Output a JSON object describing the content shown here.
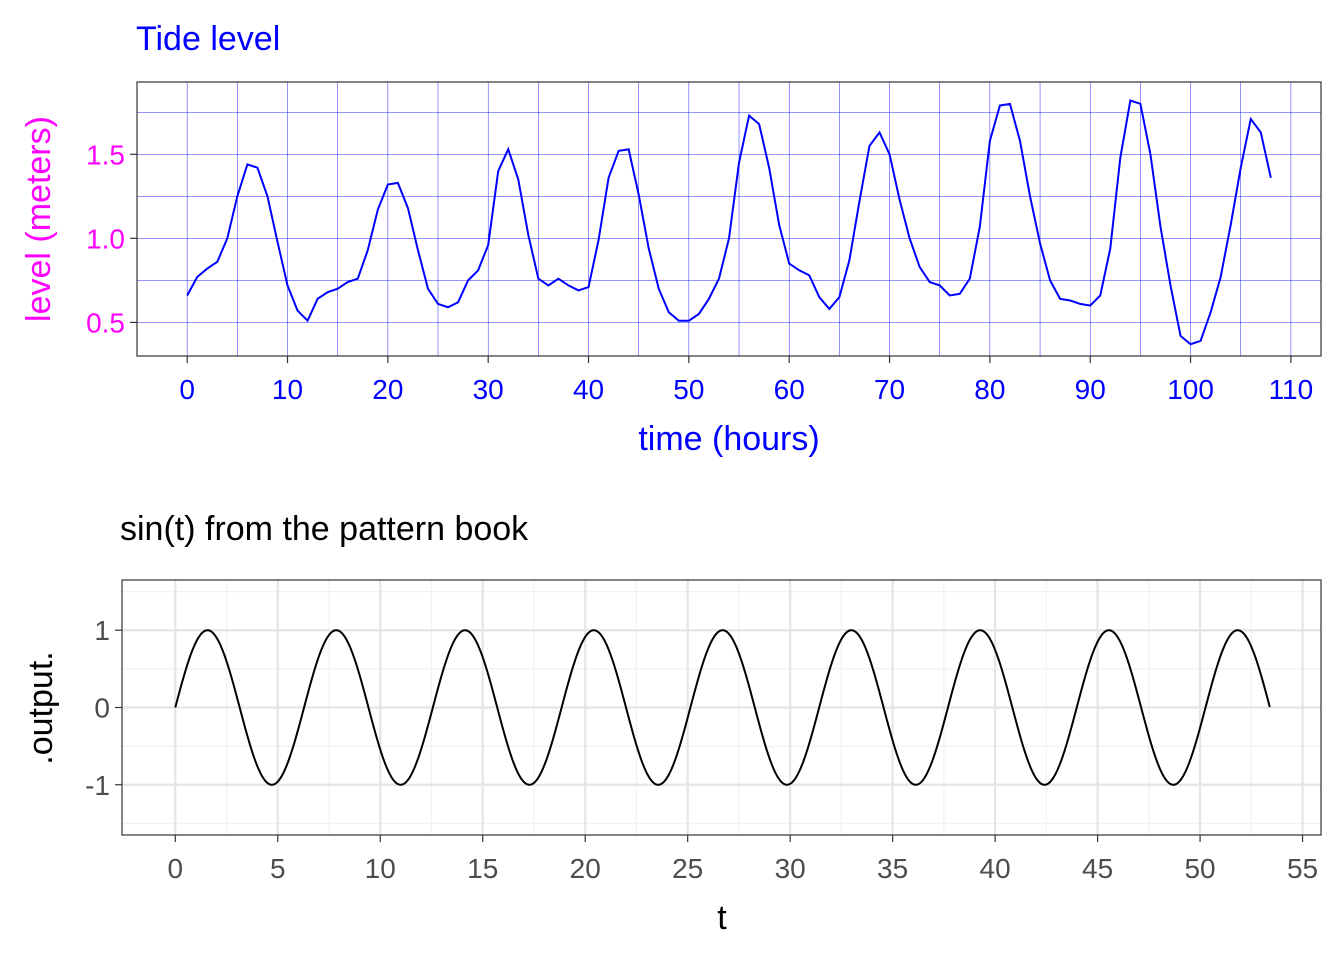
{
  "colors": {
    "tide_accent": "#0000ff",
    "tide_ylabel": "#ff00ff",
    "tide_grid": "#0000ff",
    "sine_line": "#000000",
    "sine_grid_major": "#e5e5e5",
    "sine_grid_minor": "#f1f1f1",
    "tick_text": "#4d4d4d"
  },
  "chart_data": [
    {
      "type": "line",
      "title": "Tide level",
      "xlabel": "time (hours)",
      "ylabel": "level (meters)",
      "xlim": [
        -5,
        113
      ],
      "ylim": [
        0.3,
        1.93
      ],
      "x_ticks": [
        0,
        10,
        20,
        30,
        40,
        50,
        60,
        70,
        80,
        90,
        100,
        110
      ],
      "x_tick_labels": [
        "0",
        "10",
        "20",
        "30",
        "40",
        "50",
        "60",
        "70",
        "80",
        "90",
        "100",
        "110"
      ],
      "y_ticks": [
        0.5,
        1.0,
        1.5
      ],
      "y_tick_labels": [
        "0.5",
        "1.0",
        "1.5"
      ],
      "grid": true,
      "series": [
        {
          "x": [
            0,
            1,
            2,
            3,
            4,
            5,
            6,
            7,
            8,
            9,
            10,
            11,
            12,
            13,
            14,
            15,
            16,
            17,
            18,
            19,
            20,
            21,
            22,
            23,
            24,
            25,
            26,
            27,
            28,
            29,
            30,
            31,
            32,
            33,
            34,
            35,
            36,
            37,
            38,
            39,
            40,
            41,
            42,
            43,
            44,
            45,
            46,
            47,
            48,
            49,
            50,
            51,
            52,
            53,
            54,
            55,
            56,
            57,
            58,
            59,
            60,
            61,
            62,
            63,
            64,
            65,
            66,
            67,
            68,
            69,
            70,
            71,
            72,
            73,
            74,
            75,
            76,
            77,
            78,
            79,
            80,
            81,
            82,
            83,
            84,
            85,
            86,
            87,
            88,
            89,
            90,
            91,
            92,
            93,
            94,
            95,
            96,
            97,
            98,
            99,
            100,
            101,
            102,
            103,
            104,
            105,
            106,
            107,
            108
          ],
          "y": [
            0.66,
            0.77,
            0.82,
            0.86,
            1.0,
            1.25,
            1.44,
            1.42,
            1.25,
            0.98,
            0.72,
            0.57,
            0.51,
            0.64,
            0.68,
            0.7,
            0.74,
            0.76,
            0.93,
            1.17,
            1.32,
            1.33,
            1.18,
            0.93,
            0.7,
            0.61,
            0.59,
            0.62,
            0.75,
            0.81,
            0.96,
            1.4,
            1.53,
            1.35,
            1.02,
            0.76,
            0.72,
            0.76,
            0.72,
            0.69,
            0.71,
            0.99,
            1.36,
            1.52,
            1.53,
            1.26,
            0.94,
            0.7,
            0.56,
            0.51,
            0.51,
            0.55,
            0.64,
            0.76,
            1.0,
            1.45,
            1.73,
            1.68,
            1.42,
            1.08,
            0.85,
            0.81,
            0.78,
            0.65,
            0.58,
            0.65,
            0.87,
            1.22,
            1.55,
            1.63,
            1.5,
            1.23,
            1.0,
            0.83,
            0.74,
            0.72,
            0.66,
            0.67,
            0.76,
            1.07,
            1.58,
            1.79,
            1.8,
            1.58,
            1.25,
            0.97,
            0.75,
            0.64,
            0.63,
            0.61,
            0.6,
            0.66,
            0.94,
            1.48,
            1.82,
            1.8,
            1.5,
            1.07,
            0.72,
            0.42,
            0.37,
            0.39,
            0.56,
            0.77,
            1.08,
            1.42,
            1.71,
            1.63,
            1.36
          ]
        }
      ]
    },
    {
      "type": "line",
      "title": "sin(t) from the pattern book",
      "xlabel": "t",
      "ylabel": ".output.",
      "xlim": [
        -2.6,
        55.9
      ],
      "ylim": [
        -1.65,
        1.65
      ],
      "x_ticks": [
        0,
        5,
        10,
        15,
        20,
        25,
        30,
        35,
        40,
        45,
        50,
        55
      ],
      "x_tick_labels": [
        "0",
        "5",
        "10",
        "15",
        "20",
        "25",
        "30",
        "35",
        "40",
        "45",
        "50",
        "55"
      ],
      "y_ticks": [
        -1,
        0,
        1
      ],
      "y_tick_labels": [
        "-1",
        "0",
        "1"
      ],
      "grid": true,
      "function": "sin",
      "t_range": [
        0,
        53.4
      ]
    }
  ]
}
